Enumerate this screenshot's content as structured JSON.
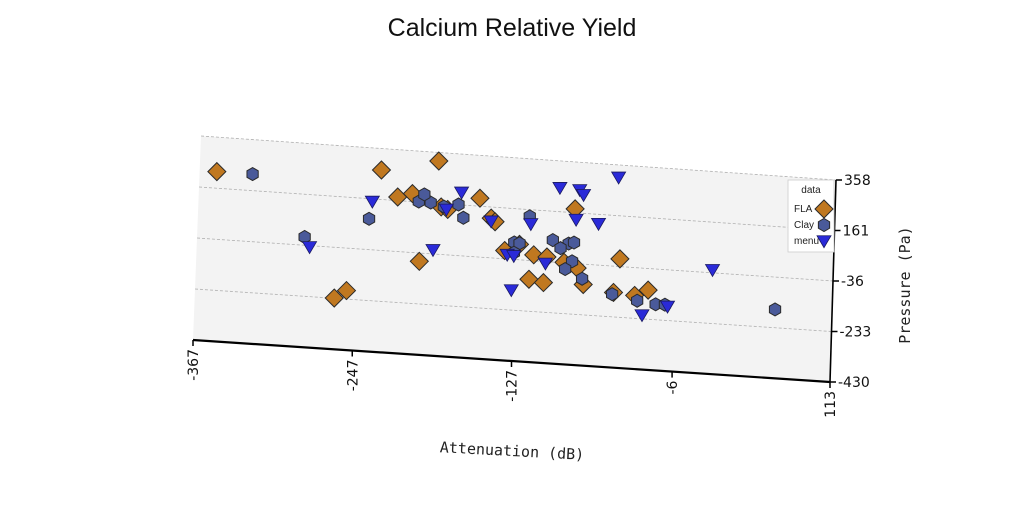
{
  "chart_data": {
    "type": "scatter",
    "title": "Calcium Relative Yield",
    "xlabel": "Attenuation (dB)",
    "ylabel": "Pressure (Pa)",
    "xlim": [
      -367,
      113
    ],
    "ylim": [
      -430,
      358
    ],
    "xticks": [
      "-367",
      "-247",
      "-127",
      "-6",
      "113"
    ],
    "yticks": [
      "-430",
      "-233",
      "-36",
      "161",
      "358"
    ],
    "legend_title": "data",
    "legend_position": "top-right",
    "grid": true,
    "series": [
      {
        "name": "FLA",
        "marker": "diamond",
        "color": "#c07820",
        "points": [
          [
            -354,
            225
          ],
          [
            -230,
            275
          ],
          [
            -253,
            -200
          ],
          [
            -217,
            175
          ],
          [
            -206,
            192
          ],
          [
            -184,
            148
          ],
          [
            -155,
            192
          ],
          [
            -146,
            118
          ],
          [
            -143,
            105
          ],
          [
            -135,
            -4
          ],
          [
            -124,
            24
          ],
          [
            -116,
            -109
          ],
          [
            -113,
            -13
          ],
          [
            -105,
            -118
          ],
          [
            -103,
            -18
          ],
          [
            -90,
            -34
          ],
          [
            -83,
            176
          ],
          [
            -80,
            -53
          ],
          [
            -75,
            -115
          ],
          [
            -48,
            -6
          ],
          [
            -52,
            -138
          ],
          [
            -36,
            -144
          ],
          [
            -26,
            -120
          ],
          [
            -199,
            -68
          ],
          [
            -179,
            140
          ],
          [
            -187,
            325
          ],
          [
            -262,
            -232
          ]
        ]
      },
      {
        "name": "Clay",
        "marker": "hexagon",
        "color": "#4a5a9a",
        "points": [
          [
            -327,
            225
          ],
          [
            -286,
            -4
          ],
          [
            -238,
            83
          ],
          [
            -201,
            163
          ],
          [
            -192,
            162
          ],
          [
            -182,
            150
          ],
          [
            -171,
            162
          ],
          [
            -128,
            30
          ],
          [
            -124,
            28
          ],
          [
            -117,
            135
          ],
          [
            -99,
            49
          ],
          [
            -87,
            40
          ],
          [
            -84,
            -28
          ],
          [
            -89,
            -60
          ],
          [
            -76,
            -93
          ],
          [
            -53,
            -145
          ],
          [
            -34,
            -164
          ],
          [
            -20,
            -173
          ],
          [
            -13,
            -172
          ],
          [
            70,
            -162
          ],
          [
            -197,
            192
          ],
          [
            -167,
            112
          ],
          [
            -128,
            -10
          ],
          [
            -93,
            20
          ],
          [
            -83,
            45
          ]
        ]
      },
      {
        "name": "menu",
        "marker": "triangle",
        "color": "#2a2ad8",
        "points": [
          [
            -282,
            -41
          ],
          [
            -236,
            151
          ],
          [
            -189,
            -20
          ],
          [
            -180,
            140
          ],
          [
            -169,
            210
          ],
          [
            -146,
            106
          ],
          [
            -133,
            -19
          ],
          [
            -129,
            -155
          ],
          [
            -116,
            106
          ],
          [
            -104,
            -43
          ],
          [
            -95,
            254
          ],
          [
            -82,
            135
          ],
          [
            -80,
            251
          ],
          [
            -77,
            233
          ],
          [
            -65,
            125
          ],
          [
            -51,
            310
          ],
          [
            -30,
            -218
          ],
          [
            -11,
            -178
          ],
          [
            22,
            -24
          ],
          [
            -128,
            -22
          ]
        ]
      }
    ]
  }
}
